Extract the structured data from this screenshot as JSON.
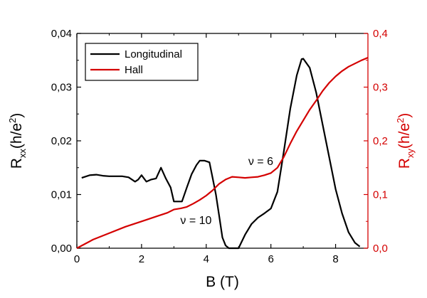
{
  "chart_data": {
    "type": "line",
    "x_axis": {
      "label": "B (T)",
      "range": [
        0,
        9
      ],
      "ticks": [
        0,
        2,
        4,
        6,
        8
      ],
      "tick_labels": [
        "0",
        "2",
        "4",
        "6",
        "8"
      ]
    },
    "y_left": {
      "label_main": "R",
      "label_sub": "xx",
      "label_tail": "(h/e",
      "label_sup": "2",
      "label_close": ")",
      "range": [
        0,
        0.04
      ],
      "ticks": [
        0,
        0.01,
        0.02,
        0.03,
        0.04
      ],
      "tick_labels": [
        "0,00",
        "0,01",
        "0,02",
        "0,03",
        "0,04"
      ],
      "color": "#000000"
    },
    "y_right": {
      "label_main": "R",
      "label_sub": "xy",
      "label_tail": "(h/e",
      "label_sup": "2",
      "label_close": ")",
      "range": [
        0,
        0.4
      ],
      "ticks": [
        0,
        0.1,
        0.2,
        0.3,
        0.4
      ],
      "tick_labels": [
        "0,0",
        "0,1",
        "0,2",
        "0,3",
        "0,4"
      ],
      "color": "#d40000"
    },
    "series": [
      {
        "name": "Longitudinal",
        "axis": "left",
        "color": "#000000",
        "x": [
          0.15,
          0.4,
          0.6,
          0.8,
          1.0,
          1.2,
          1.4,
          1.6,
          1.8,
          1.9,
          2.0,
          2.15,
          2.3,
          2.45,
          2.6,
          2.75,
          2.9,
          3.0,
          3.1,
          3.25,
          3.4,
          3.55,
          3.7,
          3.8,
          3.95,
          4.1,
          4.2,
          4.3,
          4.4,
          4.5,
          4.6,
          4.7,
          4.8,
          4.9,
          5.0,
          5.2,
          5.4,
          5.6,
          5.8,
          6.0,
          6.2,
          6.4,
          6.6,
          6.8,
          6.95,
          7.0,
          7.2,
          7.4,
          7.6,
          7.8,
          8.0,
          8.2,
          8.4,
          8.6,
          8.75
        ],
        "y": [
          0.0131,
          0.0136,
          0.0137,
          0.0135,
          0.0134,
          0.0134,
          0.0134,
          0.0132,
          0.0124,
          0.0128,
          0.0136,
          0.0124,
          0.0128,
          0.013,
          0.015,
          0.013,
          0.0113,
          0.0087,
          0.0087,
          0.0087,
          0.0113,
          0.0138,
          0.0155,
          0.0163,
          0.0163,
          0.016,
          0.013,
          0.01,
          0.006,
          0.002,
          0.0005,
          0.0,
          0.0,
          0.0,
          0.0,
          0.0025,
          0.0045,
          0.0057,
          0.0065,
          0.0074,
          0.0105,
          0.018,
          0.026,
          0.0322,
          0.0352,
          0.0353,
          0.0336,
          0.029,
          0.023,
          0.017,
          0.011,
          0.0065,
          0.003,
          0.001,
          0.0003
        ]
      },
      {
        "name": "Hall",
        "axis": "right",
        "color": "#d40000",
        "x": [
          0.0,
          0.5,
          1.0,
          1.5,
          2.0,
          2.5,
          2.8,
          3.0,
          3.2,
          3.4,
          3.6,
          3.8,
          4.0,
          4.2,
          4.4,
          4.6,
          4.8,
          5.0,
          5.2,
          5.4,
          5.6,
          5.8,
          6.0,
          6.2,
          6.4,
          6.6,
          6.8,
          7.0,
          7.2,
          7.4,
          7.6,
          7.8,
          8.0,
          8.2,
          8.4,
          8.6,
          8.8,
          9.0
        ],
        "y": [
          0.0,
          0.016,
          0.028,
          0.04,
          0.05,
          0.06,
          0.066,
          0.072,
          0.074,
          0.077,
          0.083,
          0.09,
          0.098,
          0.108,
          0.12,
          0.128,
          0.133,
          0.132,
          0.131,
          0.132,
          0.133,
          0.136,
          0.14,
          0.15,
          0.17,
          0.195,
          0.218,
          0.238,
          0.258,
          0.275,
          0.293,
          0.308,
          0.32,
          0.33,
          0.338,
          0.344,
          0.35,
          0.355
        ]
      }
    ],
    "legend": {
      "placement": "top-left",
      "entries": [
        "Longitudinal",
        "Hall"
      ]
    },
    "annotations": [
      {
        "text": "ν = 6",
        "x": 5.3,
        "y": 0.0155
      },
      {
        "text": "ν = 10",
        "x": 3.2,
        "y": 0.0045
      }
    ],
    "grid": false
  }
}
